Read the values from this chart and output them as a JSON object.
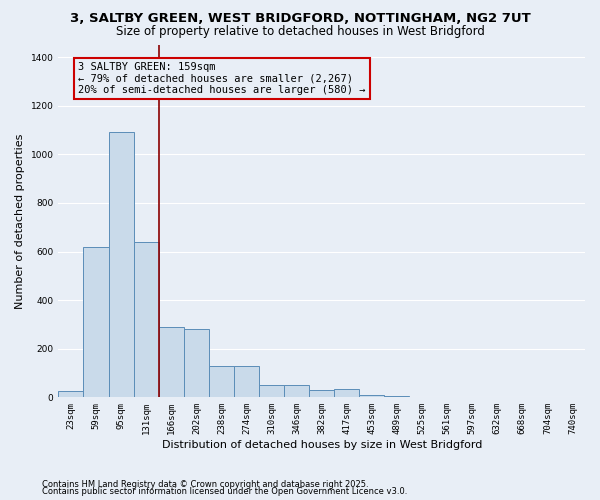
{
  "title_line1": "3, SALTBY GREEN, WEST BRIDGFORD, NOTTINGHAM, NG2 7UT",
  "title_line2": "Size of property relative to detached houses in West Bridgford",
  "xlabel": "Distribution of detached houses by size in West Bridgford",
  "ylabel": "Number of detached properties",
  "categories": [
    "23sqm",
    "59sqm",
    "95sqm",
    "131sqm",
    "166sqm",
    "202sqm",
    "238sqm",
    "274sqm",
    "310sqm",
    "346sqm",
    "382sqm",
    "417sqm",
    "453sqm",
    "489sqm",
    "525sqm",
    "561sqm",
    "597sqm",
    "632sqm",
    "668sqm",
    "704sqm",
    "740sqm"
  ],
  "values": [
    25,
    620,
    1090,
    640,
    290,
    280,
    130,
    130,
    50,
    50,
    30,
    35,
    10,
    5,
    3,
    2,
    2,
    1,
    1,
    0,
    0
  ],
  "bar_color": "#c9daea",
  "bar_edge_color": "#5b8db8",
  "background_color": "#e8eef6",
  "grid_color": "#ffffff",
  "vline_color": "#8b0000",
  "vline_x_index": 3.5,
  "annotation_text": "3 SALTBY GREEN: 159sqm\n← 79% of detached houses are smaller (2,267)\n20% of semi-detached houses are larger (580) →",
  "annotation_box_edge_color": "#cc0000",
  "annotation_box_face_color": "#e8eef6",
  "ylim": [
    0,
    1450
  ],
  "yticks": [
    0,
    200,
    400,
    600,
    800,
    1000,
    1200,
    1400
  ],
  "footnote1": "Contains HM Land Registry data © Crown copyright and database right 2025.",
  "footnote2": "Contains public sector information licensed under the Open Government Licence v3.0.",
  "title_fontsize": 9.5,
  "subtitle_fontsize": 8.5,
  "xlabel_fontsize": 8,
  "ylabel_fontsize": 8,
  "tick_fontsize": 6.5,
  "annotation_fontsize": 7.5,
  "footnote_fontsize": 6
}
